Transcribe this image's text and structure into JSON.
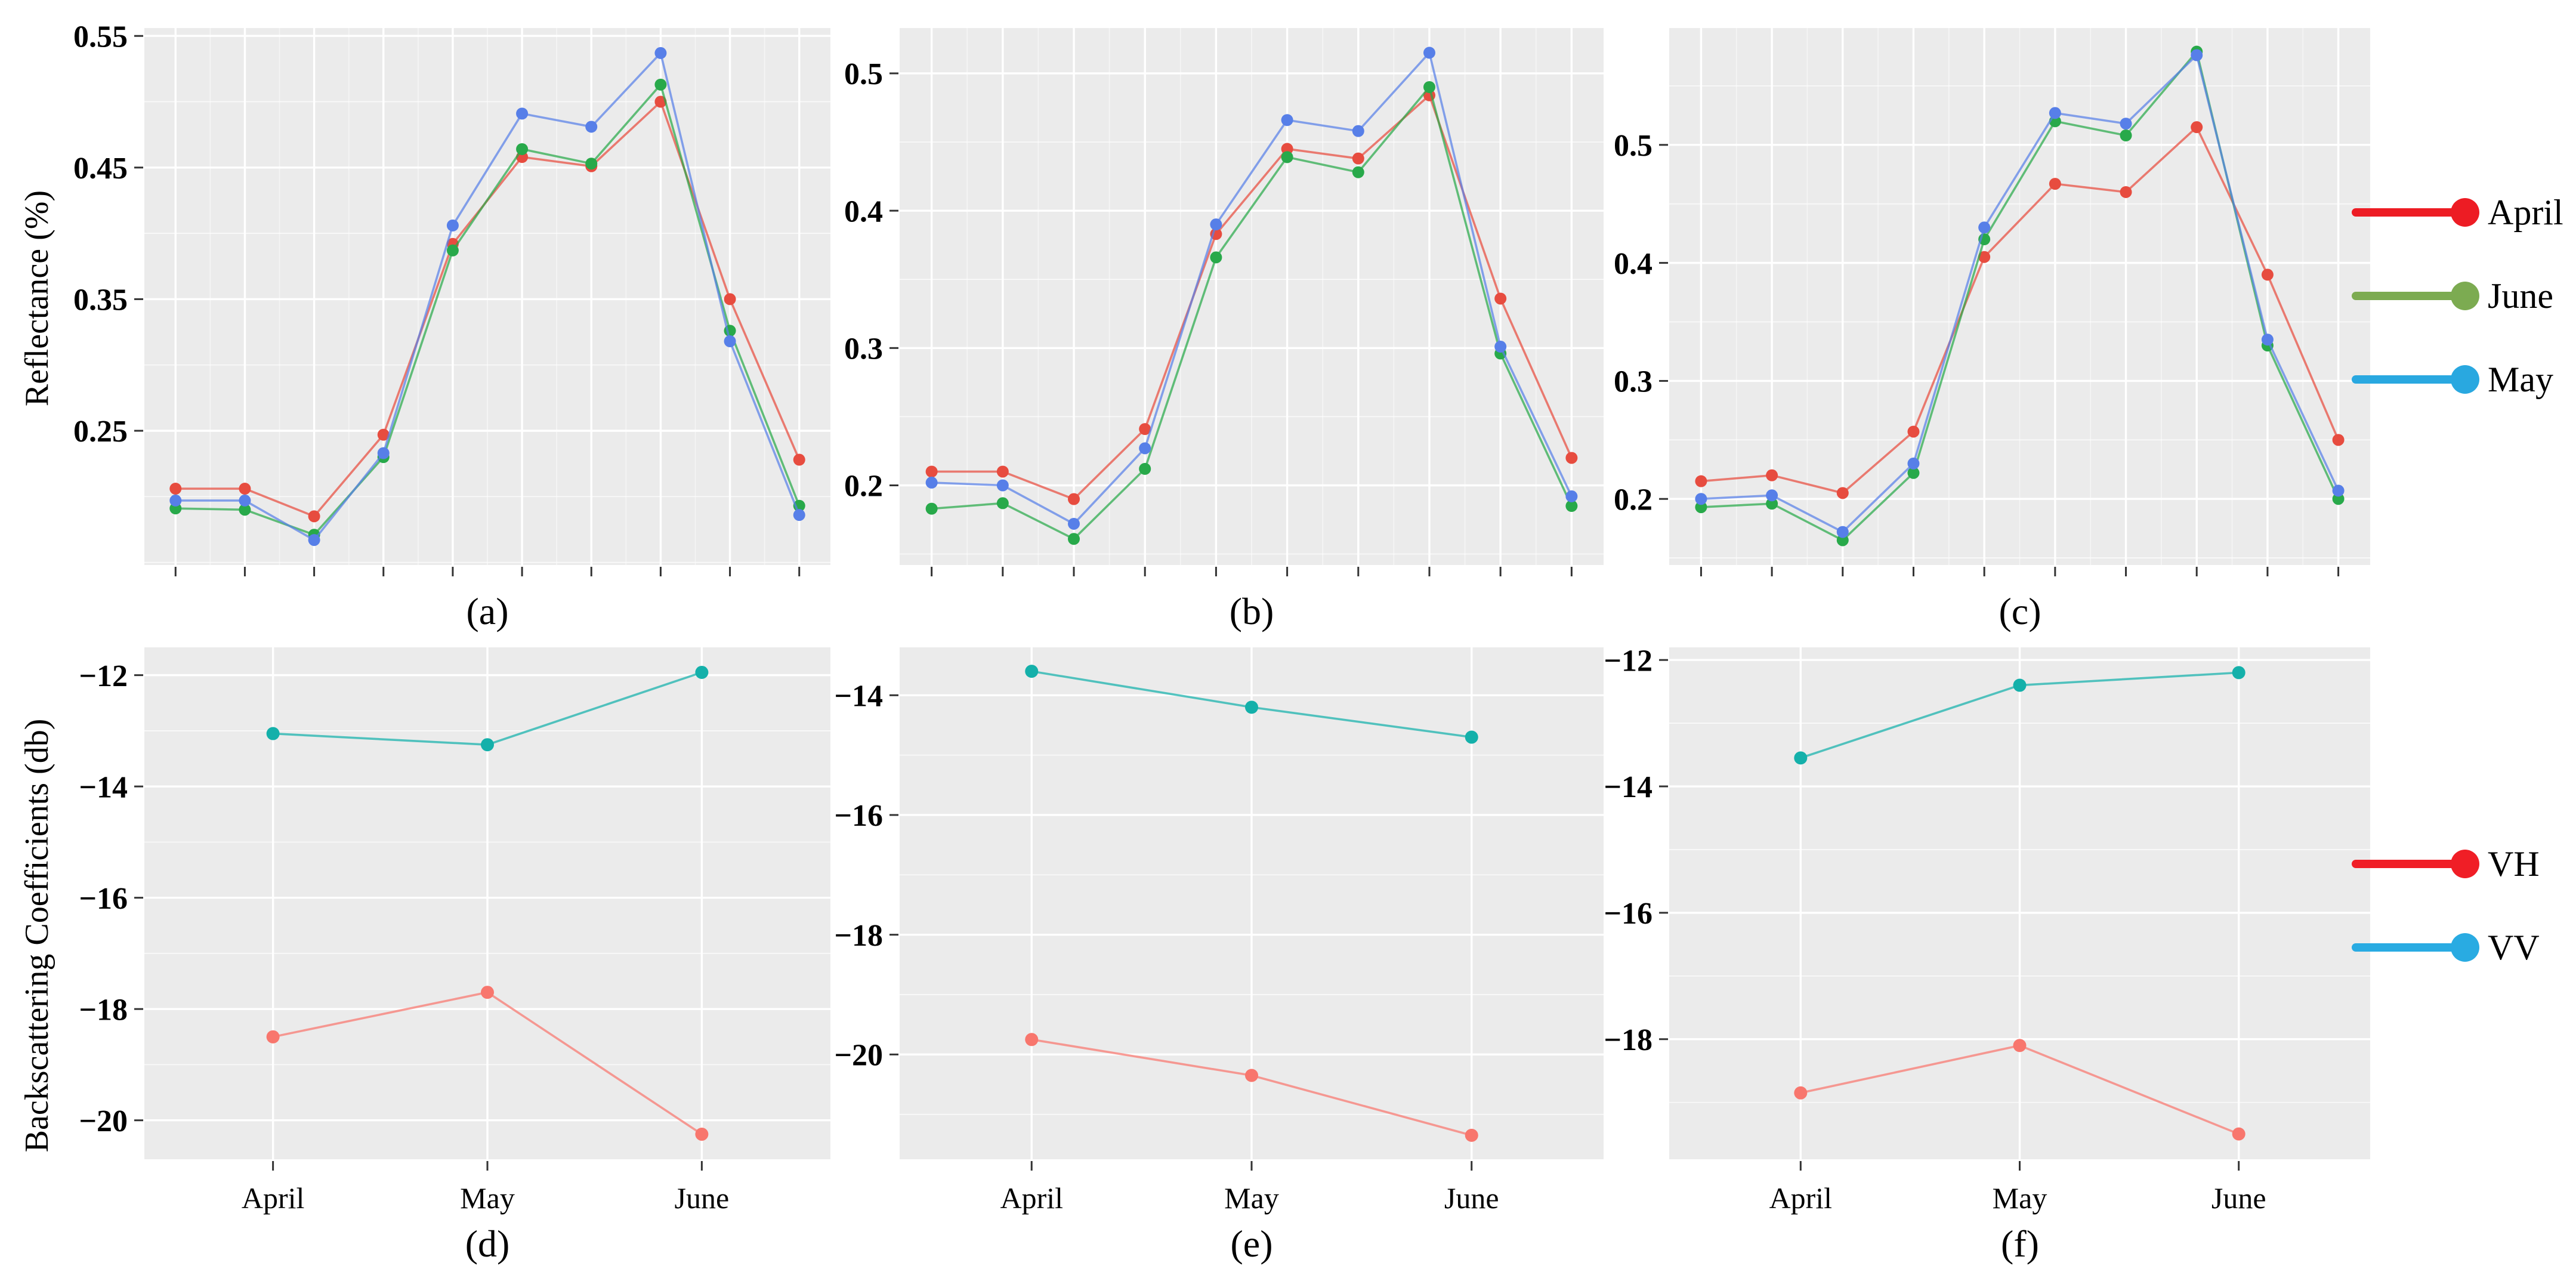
{
  "figure": {
    "background": "#ffffff",
    "panel_background": "#ebebeb",
    "grid_color": "#ffffff",
    "tick_color": "#333333",
    "text_color": "#000000",
    "row1_ylabel": "Reflectance (%)",
    "row2_ylabel": "Backscattering Coefficients (db)",
    "legend_top": {
      "items": [
        {
          "label": "April",
          "color": "#ed1c24",
          "icon": "line-dot-swatch"
        },
        {
          "label": "June",
          "color": "#7cab51",
          "icon": "line-dot-swatch"
        },
        {
          "label": "May",
          "color": "#29a8e0",
          "icon": "line-dot-swatch"
        }
      ]
    },
    "legend_bottom": {
      "items": [
        {
          "label": "VH",
          "color": "#f01e26",
          "icon": "line-dot-swatch"
        },
        {
          "label": "VV",
          "color": "#29abe2",
          "icon": "line-dot-swatch"
        }
      ]
    }
  },
  "chart_data": [
    {
      "id": "a",
      "type": "line",
      "caption": "(a)",
      "ylabel": "Reflectance (%)",
      "x": [
        1,
        2,
        3,
        4,
        5,
        6,
        7,
        8,
        9,
        10
      ],
      "x_tick_labels": [],
      "minor_xticks": [
        1.5,
        2.5,
        3.5,
        4.5,
        5.5,
        6.5,
        7.5,
        8.5,
        9.5
      ],
      "xlim": [
        0.55,
        10.45
      ],
      "ylim": [
        0.148,
        0.556
      ],
      "yticks": [
        0.25,
        0.35,
        0.45,
        0.55
      ],
      "ytick_labels": [
        "0.25",
        "0.35",
        "0.45",
        "0.55"
      ],
      "minor_yticks": [
        0.15,
        0.2,
        0.3,
        0.4,
        0.5
      ],
      "series": [
        {
          "name": "April",
          "color": "#e74c3f",
          "values": [
            0.206,
            0.206,
            0.185,
            0.247,
            0.392,
            0.458,
            0.451,
            0.5,
            0.35,
            0.228
          ]
        },
        {
          "name": "June",
          "color": "#28a94a",
          "values": [
            0.191,
            0.19,
            0.171,
            0.23,
            0.387,
            0.464,
            0.453,
            0.513,
            0.326,
            0.193
          ]
        },
        {
          "name": "May",
          "color": "#577fe8",
          "values": [
            0.197,
            0.197,
            0.167,
            0.233,
            0.406,
            0.491,
            0.481,
            0.537,
            0.318,
            0.186
          ]
        }
      ]
    },
    {
      "id": "b",
      "type": "line",
      "caption": "(b)",
      "ylabel": "Reflectance (%)",
      "x": [
        1,
        2,
        3,
        4,
        5,
        6,
        7,
        8,
        9,
        10
      ],
      "x_tick_labels": [],
      "minor_xticks": [
        1.5,
        2.5,
        3.5,
        4.5,
        5.5,
        6.5,
        7.5,
        8.5,
        9.5
      ],
      "xlim": [
        0.55,
        10.45
      ],
      "ylim": [
        0.142,
        0.533
      ],
      "yticks": [
        0.2,
        0.3,
        0.4,
        0.5
      ],
      "ytick_labels": [
        "0.2",
        "0.3",
        "0.4",
        "0.5"
      ],
      "minor_yticks": [
        0.15,
        0.25,
        0.35,
        0.45
      ],
      "series": [
        {
          "name": "April",
          "color": "#e74c3f",
          "values": [
            0.21,
            0.21,
            0.19,
            0.241,
            0.383,
            0.445,
            0.438,
            0.484,
            0.336,
            0.22
          ]
        },
        {
          "name": "June",
          "color": "#28a94a",
          "values": [
            0.183,
            0.187,
            0.161,
            0.212,
            0.366,
            0.439,
            0.428,
            0.49,
            0.296,
            0.185
          ]
        },
        {
          "name": "May",
          "color": "#577fe8",
          "values": [
            0.202,
            0.2,
            0.172,
            0.227,
            0.39,
            0.466,
            0.458,
            0.515,
            0.301,
            0.192
          ]
        }
      ]
    },
    {
      "id": "c",
      "type": "line",
      "caption": "(c)",
      "ylabel": "Reflectance (%)",
      "x": [
        1,
        2,
        3,
        4,
        5,
        6,
        7,
        8,
        9,
        10
      ],
      "x_tick_labels": [],
      "minor_xticks": [
        1.5,
        2.5,
        3.5,
        4.5,
        5.5,
        6.5,
        7.5,
        8.5,
        9.5
      ],
      "xlim": [
        0.55,
        10.45
      ],
      "ylim": [
        0.144,
        0.599
      ],
      "yticks": [
        0.2,
        0.3,
        0.4,
        0.5
      ],
      "ytick_labels": [
        "0.2",
        "0.3",
        "0.4",
        "0.5"
      ],
      "minor_yticks": [
        0.15,
        0.25,
        0.35,
        0.45,
        0.55
      ],
      "series": [
        {
          "name": "April",
          "color": "#e74c3f",
          "values": [
            0.215,
            0.22,
            0.205,
            0.257,
            0.405,
            0.467,
            0.46,
            0.515,
            0.39,
            0.25
          ]
        },
        {
          "name": "June",
          "color": "#28a94a",
          "values": [
            0.193,
            0.196,
            0.165,
            0.222,
            0.42,
            0.52,
            0.508,
            0.579,
            0.33,
            0.2
          ]
        },
        {
          "name": "May",
          "color": "#577fe8",
          "values": [
            0.2,
            0.203,
            0.172,
            0.23,
            0.43,
            0.527,
            0.518,
            0.576,
            0.335,
            0.207
          ]
        }
      ]
    },
    {
      "id": "d",
      "type": "line",
      "caption": "(d)",
      "ylabel": "Backscattering Coefficients (db)",
      "x": [
        1,
        2,
        3
      ],
      "x_tick_labels": [
        "April",
        "May",
        "June"
      ],
      "minor_xticks": [],
      "xlim": [
        0.4,
        3.6
      ],
      "ylim": [
        -20.7,
        -11.5
      ],
      "yticks": [
        -12,
        -14,
        -16,
        -18,
        -20
      ],
      "ytick_labels": [
        "−12",
        "−14",
        "−16",
        "−18",
        "−20"
      ],
      "minor_yticks": [
        -13,
        -15,
        -17,
        -19
      ],
      "series": [
        {
          "name": "VH",
          "color": "#f8766d",
          "values": [
            -18.5,
            -17.7,
            -20.25
          ]
        },
        {
          "name": "VV",
          "color": "#14b0aa",
          "values": [
            -13.05,
            -13.25,
            -11.95
          ]
        }
      ]
    },
    {
      "id": "e",
      "type": "line",
      "caption": "(e)",
      "ylabel": "Backscattering Coefficients (db)",
      "x": [
        1,
        2,
        3
      ],
      "x_tick_labels": [
        "April",
        "May",
        "June"
      ],
      "minor_xticks": [],
      "xlim": [
        0.4,
        3.6
      ],
      "ylim": [
        -21.75,
        -13.2
      ],
      "yticks": [
        -14,
        -16,
        -18,
        -20
      ],
      "ytick_labels": [
        "−14",
        "−16",
        "−18",
        "−20"
      ],
      "minor_yticks": [
        -15,
        -17,
        -19,
        -21
      ],
      "series": [
        {
          "name": "VH",
          "color": "#f8766d",
          "values": [
            -19.75,
            -20.35,
            -21.35
          ]
        },
        {
          "name": "VV",
          "color": "#14b0aa",
          "values": [
            -13.6,
            -14.2,
            -14.7
          ]
        }
      ]
    },
    {
      "id": "f",
      "type": "line",
      "caption": "(f)",
      "ylabel": "Backscattering Coefficients (db)",
      "x": [
        1,
        2,
        3
      ],
      "x_tick_labels": [
        "April",
        "May",
        "June"
      ],
      "minor_xticks": [],
      "xlim": [
        0.4,
        3.6
      ],
      "ylim": [
        -19.9,
        -11.8
      ],
      "yticks": [
        -12,
        -14,
        -16,
        -18
      ],
      "ytick_labels": [
        "−12",
        "−14",
        "−16",
        "−18"
      ],
      "minor_yticks": [
        -13,
        -15,
        -17,
        -19
      ],
      "series": [
        {
          "name": "VH",
          "color": "#f8766d",
          "values": [
            -18.85,
            -18.1,
            -19.5
          ]
        },
        {
          "name": "VV",
          "color": "#14b0aa",
          "values": [
            -13.55,
            -12.4,
            -12.2
          ]
        }
      ]
    }
  ]
}
